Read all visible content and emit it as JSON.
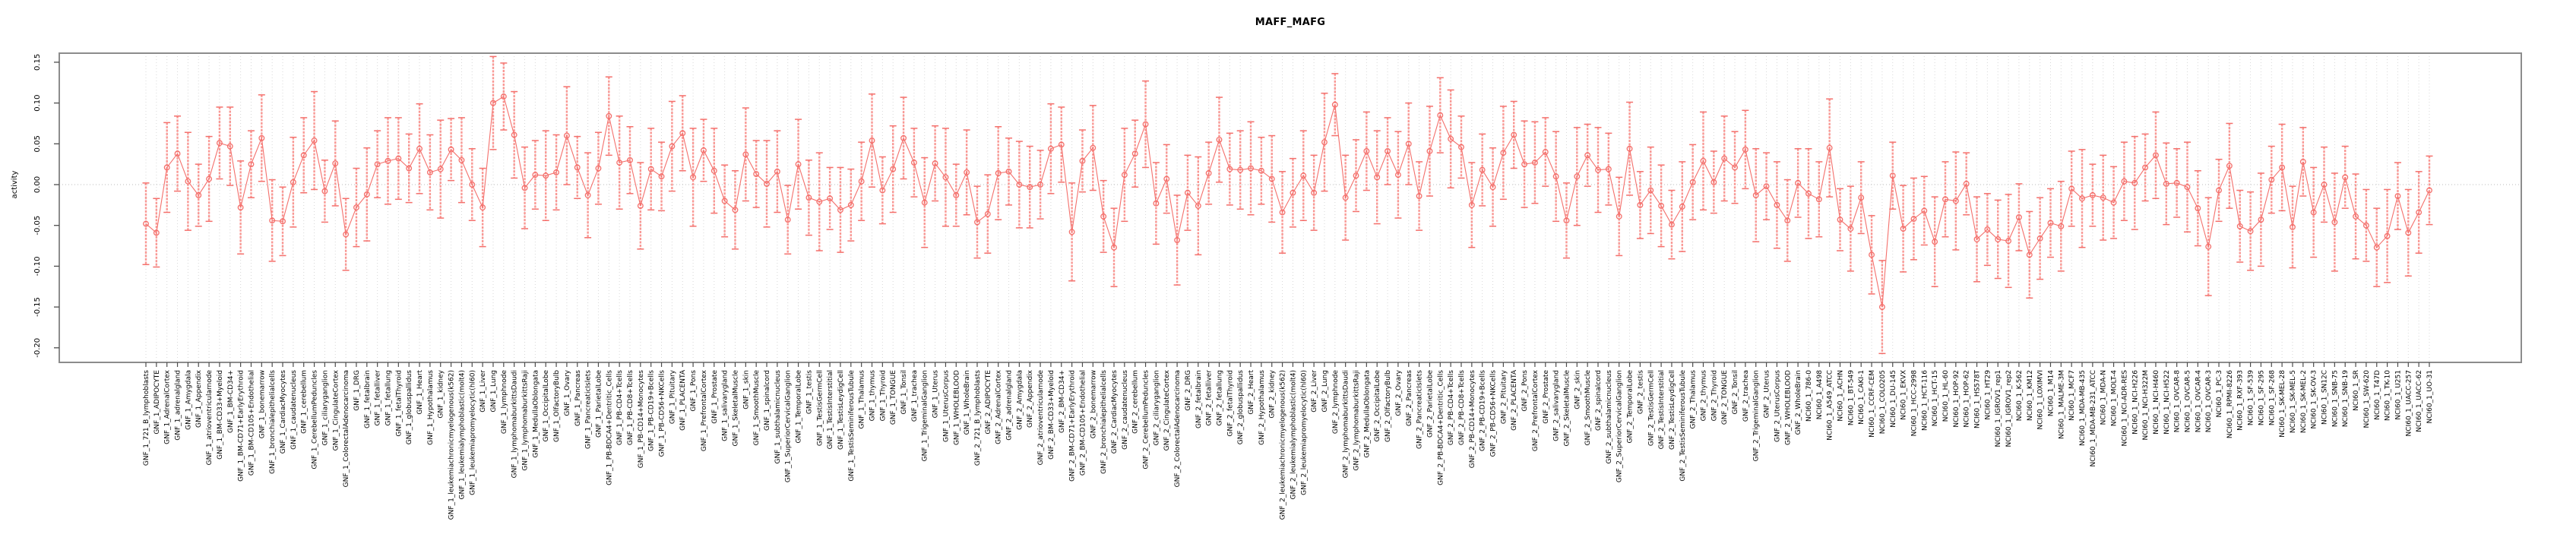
{
  "title": "MAFF_MAFG",
  "y_axis": {
    "label": "activity"
  },
  "chart_data": {
    "type": "scatter",
    "subtype": "points-with-error-bars",
    "title": "MAFF_MAFG",
    "xlabel": "",
    "ylabel": "activity",
    "ylim": [
      -0.209,
      0.161
    ],
    "yticks": [
      0.15,
      0.1,
      0.05,
      0.0,
      -0.05,
      -0.1,
      -0.15,
      -0.2
    ],
    "zero_reference_line": 0,
    "grid": "vertical dotted line per category, dotted horizontal line at 0",
    "legend_position": "none",
    "point_color": "#f4706c",
    "errorbar_color": "#f99894",
    "axis_box_color": "#8c8c8c",
    "category_groups": [
      {
        "prefix": "GNF_1_",
        "list": "gnf_tissues"
      },
      {
        "prefix": "GNF_2_",
        "list": "gnf_tissues"
      },
      {
        "prefix": "NCI60_1_",
        "list": "nci60_lines"
      }
    ],
    "gnf_tissues": [
      "721_B_lymphoblasts",
      "ADIPOCYTE",
      "AdrenalCortex",
      "adrenalgland",
      "Amygdala",
      "Appendix",
      "atrioventricularnode",
      "BM-CD33+Myeloid",
      "BM-CD34+",
      "BM-CD71+EarlyErythroid",
      "BM-CD105+Endothelial",
      "bonemarrow",
      "bronchialepithelialcells",
      "CardiacMyocytes",
      "caudatenucleus",
      "cerebellum",
      "CerebellumPeduncles",
      "ciliaryganglion",
      "CingulateCortex",
      "ColorectalAdenocarcinoma",
      "DRG",
      "fetalbrain",
      "fetalliver",
      "fetallung",
      "fetalThyroid",
      "globuspallidus",
      "Heart",
      "Hypothalamus",
      "kidney",
      "leukemiachronicmyelogenous(k562)",
      "leukemialymphoblastic(molt4)",
      "leukemiapromyelocytic(hl60)",
      "Liver",
      "Lung",
      "lymphnode",
      "lymphomaburkittsDaudi",
      "lymphomaburkittsRaji",
      "MedullaOblongata",
      "OccipitalLobe",
      "OlfactoryBulb",
      "Ovary",
      "Pancreas",
      "PancreaticIslets",
      "ParietalLobe",
      "PB-BDCA4+Dentritic_Cells",
      "PB-CD4+Tcells",
      "PB-CD8+Tcells",
      "PB-CD14+Monocytes",
      "PB-CD19+Bcells",
      "PB-CD56+NKCells",
      "Pituitary",
      "PLACENTA",
      "Pons",
      "PrefrontalCortex",
      "Prostate",
      "salivarygland",
      "SkeletalMuscle",
      "skin",
      "SmoothMuscle",
      "spinalcord",
      "subthalamicnucleus",
      "SuperiorCervicalGanglion",
      "TemporalLobe",
      "testis",
      "TestisGermCell",
      "TestisInterstitial",
      "TestisLeydigCell",
      "TestisSeminiferousTubule",
      "Thalamus",
      "thymus",
      "Thyroid",
      "TONGUE",
      "Tonsil",
      "trachea",
      "TrigeminalGanglion",
      "Uterus",
      "UterusCorpus",
      "WHOLEBLOOD",
      "WholeBrain"
    ],
    "nci60_lines": [
      "786-0",
      "A498",
      "A549_ATCC",
      "ACHN",
      "BT-549",
      "CAKI-1",
      "CCRF-CEM",
      "COLO205",
      "DU-145",
      "EKVX",
      "HCC-2998",
      "HCT-116",
      "HCT-15",
      "HL-60",
      "HOP-92",
      "HOP-62",
      "HS578T",
      "HT29",
      "IGROV1_rep1",
      "IGROV1_rep2",
      "K-562",
      "KM12",
      "LOXIMVI",
      "M14",
      "MALME-3M",
      "MCF7",
      "MDA-MB-435",
      "MDA-MB-231_ATCC",
      "MDA-N",
      "MOLT-4",
      "NCI-ADR-RES",
      "NCI-H226",
      "NCI-H322M",
      "NCI-H460",
      "NCI-H522",
      "OVCAR-8",
      "OVCAR-5",
      "OVCAR-4",
      "OVCAR-3",
      "PC-3",
      "RPMI-8226",
      "RXF-393",
      "SF-539",
      "SF-295",
      "SF-268",
      "SK-MEL-28",
      "SK-MEL-5",
      "SK-MEL-2",
      "SK-OV-3",
      "SN12C",
      "SNB-75",
      "SNB-19",
      "SR",
      "SW-620",
      "T47D",
      "TK-10",
      "U251",
      "UACC-257",
      "UACC-62",
      "UO-31"
    ],
    "values": [
      -0.048,
      -0.059,
      0.021,
      0.038,
      0.004,
      -0.013,
      0.007,
      0.051,
      0.047,
      -0.028,
      0.025,
      0.057,
      -0.044,
      -0.045,
      0.003,
      0.036,
      0.054,
      -0.008,
      0.026,
      -0.061,
      -0.028,
      -0.012,
      0.025,
      0.029,
      0.032,
      0.02,
      0.044,
      0.015,
      0.019,
      0.043,
      0.03,
      0.0,
      -0.028,
      0.1,
      0.108,
      0.061,
      -0.004,
      0.012,
      0.011,
      0.015,
      0.06,
      0.021,
      -0.013,
      0.02,
      0.084,
      0.027,
      0.03,
      -0.026,
      0.019,
      0.01,
      0.047,
      0.063,
      0.009,
      0.042,
      0.017,
      -0.02,
      -0.031,
      0.037,
      0.013,
      0.001,
      0.016,
      -0.043,
      0.025,
      -0.016,
      -0.021,
      -0.017,
      -0.031,
      -0.025,
      0.004,
      0.054,
      -0.007,
      0.019,
      0.057,
      0.027,
      -0.022,
      0.026,
      0.009,
      -0.013,
      0.015,
      -0.046,
      -0.036,
      0.014,
      0.016,
      0.0,
      -0.003,
      0.0,
      0.044,
      0.049,
      -0.058,
      0.029,
      0.045,
      -0.039,
      -0.077,
      0.012,
      0.038,
      0.074,
      -0.023,
      0.007,
      -0.068,
      -0.01,
      -0.026,
      0.014,
      0.055,
      0.019,
      0.018,
      0.02,
      0.017,
      0.007,
      -0.034,
      -0.01,
      0.011,
      -0.01,
      0.052,
      0.098,
      -0.016,
      0.011,
      0.041,
      0.009,
      0.041,
      0.012,
      0.05,
      -0.014,
      0.041,
      0.085,
      0.056,
      0.046,
      -0.025,
      0.018,
      -0.003,
      0.039,
      0.061,
      0.025,
      0.027,
      0.04,
      0.01,
      -0.044,
      0.01,
      0.036,
      0.018,
      0.019,
      -0.039,
      0.044,
      -0.025,
      -0.007,
      -0.026,
      -0.049,
      -0.027,
      0.003,
      0.029,
      0.003,
      0.032,
      0.021,
      0.043,
      -0.013,
      -0.002,
      -0.025,
      -0.044,
      0.002,
      -0.011,
      -0.018,
      0.045,
      -0.043,
      -0.054,
      -0.016,
      -0.086,
      -0.15,
      0.011,
      -0.054,
      -0.042,
      -0.032,
      -0.07,
      -0.018,
      -0.02,
      0.001,
      -0.067,
      -0.055,
      -0.067,
      -0.069,
      -0.04,
      -0.086,
      -0.066,
      -0.047,
      -0.051,
      -0.005,
      -0.017,
      -0.013,
      -0.016,
      -0.022,
      0.004,
      0.002,
      0.021,
      0.036,
      0.001,
      0.002,
      -0.003,
      -0.029,
      -0.076,
      -0.007,
      0.023,
      -0.051,
      -0.057,
      -0.043,
      0.006,
      0.021,
      -0.052,
      0.028,
      -0.034,
      0.0,
      -0.046,
      0.009,
      -0.039,
      -0.05,
      -0.077,
      -0.063,
      -0.014,
      -0.059,
      -0.034,
      -0.007
    ],
    "errors": [
      0.05,
      0.042,
      0.055,
      0.046,
      0.06,
      0.038,
      0.052,
      0.044,
      0.048,
      0.057,
      0.041,
      0.053,
      0.05,
      0.042,
      0.055,
      0.046,
      0.06,
      0.038,
      0.052,
      0.044,
      0.048,
      0.057,
      0.041,
      0.053,
      0.05,
      0.042,
      0.055,
      0.046,
      0.06,
      0.038,
      0.052,
      0.044,
      0.048,
      0.057,
      0.041,
      0.053,
      0.05,
      0.042,
      0.055,
      0.046,
      0.06,
      0.038,
      0.052,
      0.044,
      0.048,
      0.057,
      0.041,
      0.053,
      0.05,
      0.042,
      0.055,
      0.046,
      0.06,
      0.038,
      0.052,
      0.044,
      0.048,
      0.057,
      0.041,
      0.053,
      0.05,
      0.042,
      0.055,
      0.046,
      0.06,
      0.038,
      0.052,
      0.044,
      0.048,
      0.057,
      0.041,
      0.053,
      0.05,
      0.042,
      0.055,
      0.046,
      0.06,
      0.038,
      0.052,
      0.044,
      0.048,
      0.057,
      0.041,
      0.053,
      0.05,
      0.042,
      0.055,
      0.046,
      0.06,
      0.038,
      0.052,
      0.044,
      0.048,
      0.057,
      0.041,
      0.053,
      0.05,
      0.042,
      0.055,
      0.046,
      0.06,
      0.038,
      0.052,
      0.044,
      0.048,
      0.057,
      0.041,
      0.053,
      0.05,
      0.042,
      0.055,
      0.046,
      0.06,
      0.038,
      0.052,
      0.044,
      0.048,
      0.057,
      0.041,
      0.053,
      0.05,
      0.042,
      0.055,
      0.046,
      0.06,
      0.038,
      0.052,
      0.044,
      0.048,
      0.057,
      0.041,
      0.053,
      0.05,
      0.042,
      0.055,
      0.046,
      0.06,
      0.038,
      0.052,
      0.044,
      0.048,
      0.057,
      0.041,
      0.053,
      0.05,
      0.042,
      0.055,
      0.046,
      0.06,
      0.038,
      0.052,
      0.044,
      0.048,
      0.057,
      0.041,
      0.053,
      0.05,
      0.042,
      0.055,
      0.046,
      0.06,
      0.038,
      0.052,
      0.044,
      0.048,
      0.057,
      0.041,
      0.053,
      0.05,
      0.042,
      0.055,
      0.046,
      0.06,
      0.038,
      0.052,
      0.044,
      0.048,
      0.057,
      0.041,
      0.053,
      0.05,
      0.042,
      0.055,
      0.046,
      0.06,
      0.038,
      0.052,
      0.044,
      0.048,
      0.057,
      0.041,
      0.053,
      0.05,
      0.042,
      0.055,
      0.046,
      0.06,
      0.038,
      0.052,
      0.044,
      0.048,
      0.057,
      0.041,
      0.053,
      0.05,
      0.042,
      0.055,
      0.046,
      0.06,
      0.038,
      0.052,
      0.044,
      0.048,
      0.057,
      0.041,
      0.053,
      0.05,
      0.042
    ]
  }
}
